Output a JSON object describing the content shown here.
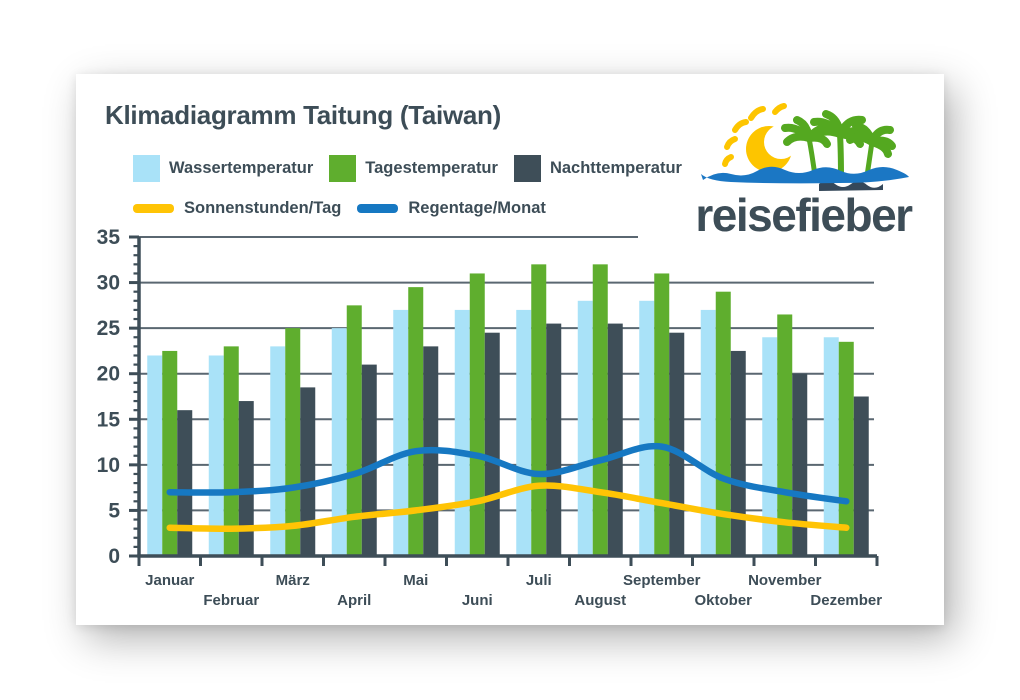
{
  "card": {
    "title": "Klimadiagramm Taitung (Taiwan)"
  },
  "logo": {
    "brand": "reisefieber"
  },
  "colors": {
    "text": "#3d4d57",
    "axis": "#3e4e58",
    "grid": "#5a6771",
    "water_temp": "#a9e2f8",
    "day_temp": "#5fae2e",
    "night_temp": "#3e4e58",
    "sun_hours": "#ffc405",
    "rain_days": "#1678c2"
  },
  "legend": {
    "bars": [
      {
        "label": "Wassertemperatur",
        "color": "#a9e2f8"
      },
      {
        "label": "Tagestemperatur",
        "color": "#5fae2e"
      },
      {
        "label": "Nachttemperatur",
        "color": "#3e4e58"
      }
    ],
    "lines": [
      {
        "label": "Sonnenstunden/Tag",
        "color": "#ffc405"
      },
      {
        "label": "Regentage/Monat",
        "color": "#1678c2"
      }
    ]
  },
  "chart_data": {
    "type": "bar",
    "title": "Klimadiagramm Taitung (Taiwan)",
    "xlabel": "",
    "ylabel": "",
    "ylim": [
      0,
      35
    ],
    "y_ticks": [
      0,
      5,
      10,
      15,
      20,
      25,
      30,
      35
    ],
    "minor_tick_step": 1,
    "grid": true,
    "legend_position": "top",
    "categories": [
      "Januar",
      "Februar",
      "März",
      "April",
      "Mai",
      "Juni",
      "Juli",
      "August",
      "September",
      "Oktober",
      "November",
      "Dezember"
    ],
    "series": [
      {
        "name": "Wassertemperatur",
        "type": "bar",
        "color": "#a9e2f8",
        "values": [
          22,
          22,
          23,
          25,
          27,
          27,
          27,
          28,
          28,
          27,
          24,
          24
        ]
      },
      {
        "name": "Tagestemperatur",
        "type": "bar",
        "color": "#5fae2e",
        "values": [
          22.5,
          23,
          25,
          27.5,
          29.5,
          31,
          32,
          32,
          31,
          29,
          26.5,
          23.5
        ]
      },
      {
        "name": "Nachttemperatur",
        "type": "bar",
        "color": "#3e4e58",
        "values": [
          16,
          17,
          18.5,
          21,
          23,
          24.5,
          25.5,
          25.5,
          24.5,
          22.5,
          20,
          17.5
        ]
      },
      {
        "name": "Sonnenstunden/Tag",
        "type": "line",
        "color": "#ffc405",
        "values": [
          3.1,
          3,
          3.3,
          4.3,
          5,
          6,
          7.7,
          7,
          5.8,
          4.6,
          3.7,
          3.1
        ]
      },
      {
        "name": "Regentage/Monat",
        "type": "line",
        "color": "#1678c2",
        "values": [
          7,
          7,
          7.5,
          9,
          11.5,
          11,
          9,
          10.5,
          12,
          8.5,
          7,
          6
        ]
      }
    ]
  }
}
